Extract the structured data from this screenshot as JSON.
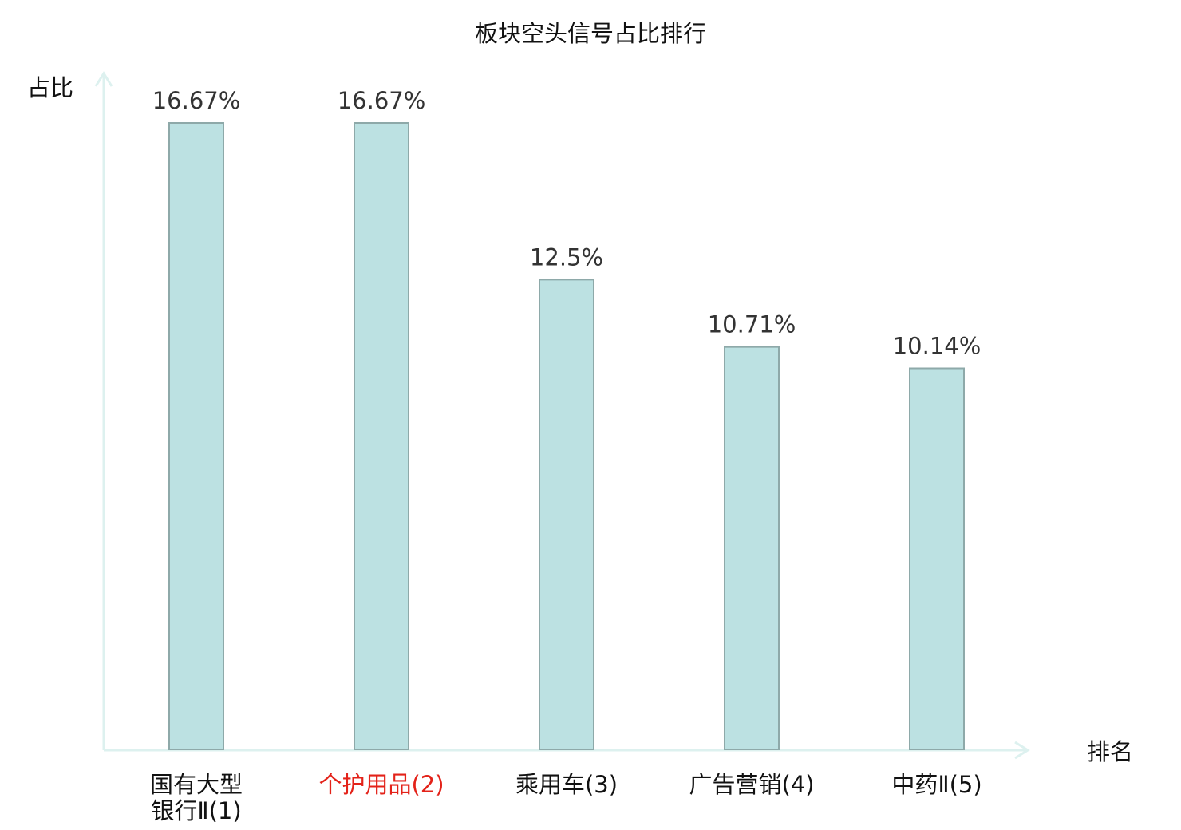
{
  "colors": {
    "bar_fill": "#bce1e2",
    "bar_stroke": "#8ea9a9",
    "axis": "#ddf1ef",
    "text": "#111111",
    "value_label": "#333333",
    "highlight_label": "#e32219"
  },
  "chart_data": {
    "type": "bar",
    "title": "板块空头信号占比排行",
    "ylabel": "占比",
    "xlabel": "排名",
    "ylim": [
      0,
      16.67
    ],
    "grid": false,
    "categories": [
      {
        "name_lines": [
          "国有大型",
          "银行Ⅱ"
        ],
        "rank": "(1)",
        "highlight": false
      },
      {
        "name_lines": [
          "个护用品"
        ],
        "rank": "(2)",
        "highlight": true
      },
      {
        "name_lines": [
          "乘用车"
        ],
        "rank": "(3)",
        "highlight": false
      },
      {
        "name_lines": [
          "广告营销"
        ],
        "rank": "(4)",
        "highlight": false
      },
      {
        "name_lines": [
          "中药Ⅱ"
        ],
        "rank": "(5)",
        "highlight": false
      }
    ],
    "values": [
      16.67,
      16.67,
      12.5,
      10.71,
      10.14
    ],
    "value_labels": [
      "16.67%",
      "16.67%",
      "12.5%",
      "10.71%",
      "10.14%"
    ]
  }
}
